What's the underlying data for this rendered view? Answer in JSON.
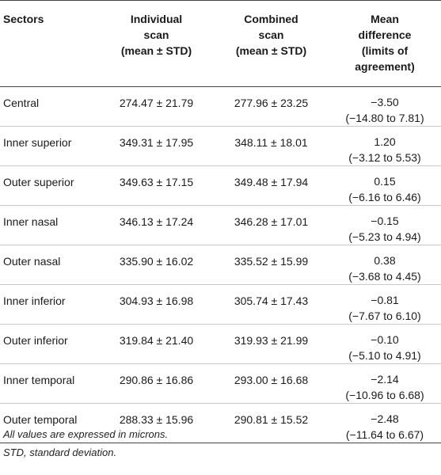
{
  "table": {
    "headers": [
      {
        "lines": [
          "Sectors"
        ]
      },
      {
        "lines": [
          "Individual",
          "scan",
          "(mean ± STD)"
        ]
      },
      {
        "lines": [
          "Combined",
          "scan",
          "(mean ± STD)"
        ]
      },
      {
        "lines": [
          "Mean",
          "difference",
          "(limits of",
          "agreement)"
        ]
      }
    ],
    "rows": [
      {
        "sector": "Central",
        "individual": "274.47 ± 21.79",
        "combined": "277.96 ± 23.25",
        "diff": "−3.50",
        "limits": "(−14.80 to 7.81)"
      },
      {
        "sector": "Inner superior",
        "individual": "349.31 ± 17.95",
        "combined": "348.11 ± 18.01",
        "diff": "1.20",
        "limits": "(−3.12 to 5.53)"
      },
      {
        "sector": "Outer superior",
        "individual": "349.63 ± 17.15",
        "combined": "349.48 ± 17.94",
        "diff": "0.15",
        "limits": "(−6.16 to 6.46)"
      },
      {
        "sector": "Inner nasal",
        "individual": "346.13 ± 17.24",
        "combined": "346.28 ± 17.01",
        "diff": "−0.15",
        "limits": "(−5.23 to 4.94)"
      },
      {
        "sector": "Outer nasal",
        "individual": "335.90 ± 16.02",
        "combined": "335.52 ± 15.99",
        "diff": "0.38",
        "limits": "(−3.68 to 4.45)"
      },
      {
        "sector": "Inner inferior",
        "individual": "304.93 ± 16.98",
        "combined": "305.74 ± 17.43",
        "diff": "−0.81",
        "limits": "(−7.67 to 6.10)"
      },
      {
        "sector": "Outer inferior",
        "individual": "319.84 ± 21.40",
        "combined": "319.93 ± 21.99",
        "diff": "−0.10",
        "limits": "(−5.10 to 4.91)"
      },
      {
        "sector": "Inner temporal",
        "individual": "290.86 ± 16.86",
        "combined": "293.00 ± 16.68",
        "diff": "−2.14",
        "limits": "(−10.96 to 6.68)"
      },
      {
        "sector": "Outer temporal",
        "individual": "288.33 ± 15.96",
        "combined": "290.81 ± 15.52",
        "diff": "−2.48",
        "limits": "(−11.64 to 6.67)"
      }
    ]
  },
  "footnotes": [
    "All values are expressed in microns.",
    "STD, standard deviation."
  ]
}
